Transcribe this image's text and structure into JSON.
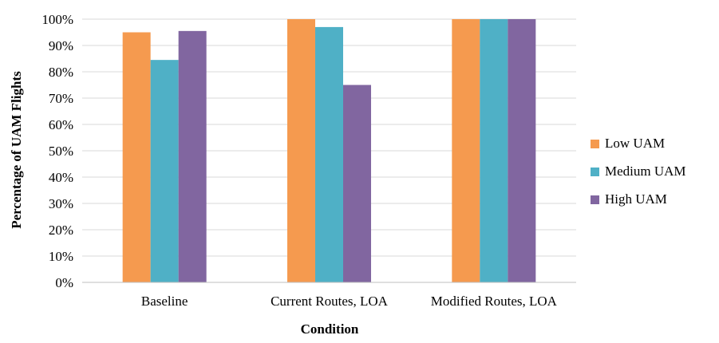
{
  "chart_data": {
    "type": "bar",
    "title": "",
    "xlabel": "Condition",
    "ylabel": "Percentage of UAM Flights",
    "categories": [
      "Baseline",
      "Current Routes, LOA",
      "Modified Routes, LOA"
    ],
    "series": [
      {
        "name": "Low UAM",
        "color": "#F59A4F",
        "values": [
          95,
          100,
          100
        ]
      },
      {
        "name": "Medium UAM",
        "color": "#4FB0C6",
        "values": [
          84.5,
          97,
          100
        ]
      },
      {
        "name": "High UAM",
        "color": "#8166A0",
        "values": [
          95.5,
          75,
          100
        ]
      }
    ],
    "ylim": [
      0,
      100
    ],
    "yticks": [
      0,
      10,
      20,
      30,
      40,
      50,
      60,
      70,
      80,
      90,
      100
    ],
    "ytick_labels": [
      "0%",
      "10%",
      "20%",
      "30%",
      "40%",
      "50%",
      "60%",
      "70%",
      "80%",
      "90%",
      "100%"
    ],
    "grid": true,
    "legend_position": "right"
  }
}
